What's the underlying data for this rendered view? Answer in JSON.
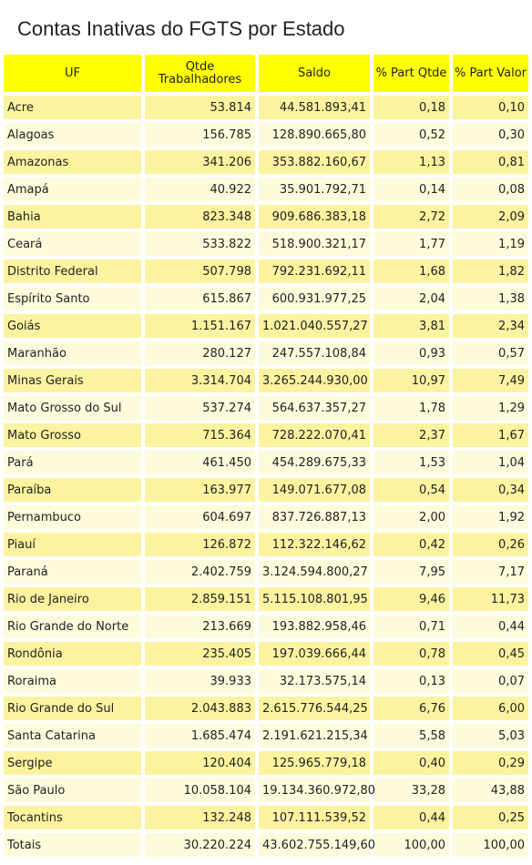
{
  "header": {
    "title": "Contas Inativas do FGTS por Estado"
  },
  "table": {
    "columns": [
      "UF",
      "Qtde Trabalhadores",
      "Saldo",
      "% Part Qtde",
      "% Part Valor"
    ],
    "rows": [
      [
        "Acre",
        "53.814",
        "44.581.893,41",
        "0,18",
        "0,10"
      ],
      [
        "Alagoas",
        "156.785",
        "128.890.665,80",
        "0,52",
        "0,30"
      ],
      [
        "Amazonas",
        "341.206",
        "353.882.160,67",
        "1,13",
        "0,81"
      ],
      [
        "Amapá",
        "40.922",
        "35.901.792,71",
        "0,14",
        "0,08"
      ],
      [
        "Bahia",
        "823.348",
        "909.686.383,18",
        "2,72",
        "2,09"
      ],
      [
        "Ceará",
        "533.822",
        "518.900.321,17",
        "1,77",
        "1,19"
      ],
      [
        "Distrito Federal",
        "507.798",
        "792.231.692,11",
        "1,68",
        "1,82"
      ],
      [
        "Espírito Santo",
        "615.867",
        "600.931.977,25",
        "2,04",
        "1,38"
      ],
      [
        "Goiás",
        "1.151.167",
        "1.021.040.557,27",
        "3,81",
        "2,34"
      ],
      [
        "Maranhão",
        "280.127",
        "247.557.108,84",
        "0,93",
        "0,57"
      ],
      [
        "Minas Gerais",
        "3.314.704",
        "3.265.244.930,00",
        "10,97",
        "7,49"
      ],
      [
        "Mato Grosso do Sul",
        "537.274",
        "564.637.357,27",
        "1,78",
        "1,29"
      ],
      [
        "Mato Grosso",
        "715.364",
        "728.222.070,41",
        "2,37",
        "1,67"
      ],
      [
        "Pará",
        "461.450",
        "454.289.675,33",
        "1,53",
        "1,04"
      ],
      [
        "Paraíba",
        "163.977",
        "149.071.677,08",
        "0,54",
        "0,34"
      ],
      [
        "Pernambuco",
        "604.697",
        "837.726.887,13",
        "2,00",
        "1,92"
      ],
      [
        "Piauí",
        "126.872",
        "112.322.146,62",
        "0,42",
        "0,26"
      ],
      [
        "Paraná",
        "2.402.759",
        "3.124.594.800,27",
        "7,95",
        "7,17"
      ],
      [
        "Rio de Janeiro",
        "2.859.151",
        "5.115.108.801,95",
        "9,46",
        "11,73"
      ],
      [
        "Rio Grande do Norte",
        "213.669",
        "193.882.958,46",
        "0,71",
        "0,44"
      ],
      [
        "Rondônia",
        "235.405",
        "197.039.666,44",
        "0,78",
        "0,45"
      ],
      [
        "Roraima",
        "39.933",
        "32.173.575,14",
        "0,13",
        "0,07"
      ],
      [
        "Rio Grande do Sul",
        "2.043.883",
        "2.615.776.544,25",
        "6,76",
        "6,00"
      ],
      [
        "Santa Catarina",
        "1.685.474",
        "2.191.621.215,34",
        "5,58",
        "5,03"
      ],
      [
        "Sergipe",
        "120.404",
        "125.965.779,18",
        "0,40",
        "0,29"
      ],
      [
        "São Paulo",
        "10.058.104",
        "19.134.360.972,80",
        "33,28",
        "43,88"
      ],
      [
        "Tocantins",
        "132.248",
        "107.111.539,52",
        "0,44",
        "0,25"
      ],
      [
        "Totais",
        "30.220.224",
        "43.602.755.149,60",
        "100,00",
        "100,00"
      ]
    ]
  }
}
